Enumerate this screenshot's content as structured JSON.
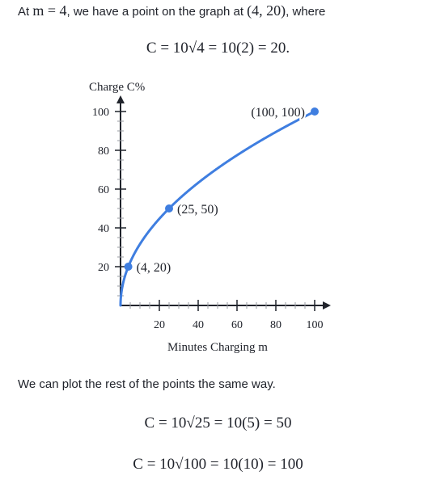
{
  "intro": {
    "prefix": "At ",
    "m_equals": "m = 4",
    "middle": ", we have a point on the graph at ",
    "point": "(4, 20)",
    "suffix": ", where"
  },
  "equation_1": "C = 10√4 = 10(2) = 20.",
  "paragraph": "We can plot the rest of the points the same way.",
  "equation_2": "C = 10√25 = 10(5) = 50",
  "equation_3": "C = 10√100 = 10(10) = 100",
  "chart_data": {
    "type": "line",
    "xlabel": "Minutes Charging m",
    "ylabel": "Charge C%",
    "xlim": [
      0,
      100
    ],
    "ylim": [
      0,
      100
    ],
    "x_ticks": [
      20,
      40,
      60,
      80,
      100
    ],
    "y_ticks": [
      20,
      40,
      60,
      80,
      100
    ],
    "x_minor_step": 5,
    "y_minor_step": 5,
    "curve": "C = 10·√m",
    "curve_color": "#3f7ee0",
    "points": [
      {
        "x": 4,
        "y": 20,
        "label": "(4, 20)"
      },
      {
        "x": 25,
        "y": 50,
        "label": "(25, 50)"
      },
      {
        "x": 100,
        "y": 100,
        "label": "(100, 100)"
      }
    ],
    "grid": false
  }
}
